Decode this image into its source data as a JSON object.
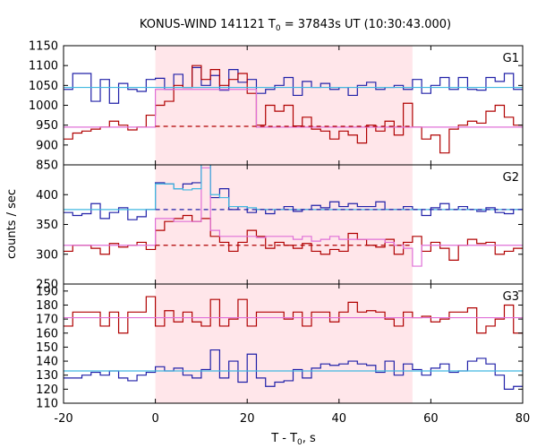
{
  "chart_data": {
    "type": "line",
    "title": "KONUS-WIND 141121 T",
    "title_sub": "0",
    "title_rest": " = 37843s UT (10:30:43.000)",
    "xlabel": "T - T",
    "xlabel_sub": "0",
    "xlabel_rest": ", s",
    "ylabel": "counts / sec",
    "xlim": [
      -20,
      80
    ],
    "xticks": [
      -20,
      0,
      20,
      40,
      60,
      80
    ],
    "shaded_interval": [
      0,
      56
    ],
    "colors": {
      "bg_red": "#b00000",
      "bg_blue": "#2020a8",
      "fg_pink": "#e070d8",
      "fg_cyan": "#40b8e0",
      "shade": "#ffe6ea"
    },
    "bin_edges": [
      -20,
      -18,
      -16,
      -14,
      -12,
      -10,
      -8,
      -6,
      -4,
      -2,
      0,
      2,
      4,
      6,
      8,
      10,
      12,
      14,
      16,
      18,
      20,
      22,
      24,
      26,
      28,
      30,
      32,
      34,
      36,
      38,
      40,
      42,
      44,
      46,
      48,
      50,
      52,
      54,
      56,
      58,
      60,
      62,
      64,
      66,
      68,
      70,
      72,
      74,
      76,
      78,
      80
    ],
    "panels": [
      {
        "label": "G1",
        "ylim": [
          850,
          1150
        ],
        "yticks": [
          850,
          900,
          950,
          1000,
          1050,
          1100,
          1150
        ],
        "ytick_labels": [
          "850",
          "900",
          "950",
          "1000",
          "1050",
          "1100",
          "1150"
        ],
        "series": [
          {
            "color": "blue",
            "values": [
              1040,
              1080,
              1080,
              1010,
              1065,
              1005,
              1055,
              1040,
              1035,
              1065,
              1068,
              1040,
              1078,
              1045,
              1095,
              1050,
              1075,
              1038,
              1090,
              1058,
              1065,
              1030,
              1040,
              1050,
              1070,
              1025,
              1060,
              1045,
              1055,
              1040,
              1045,
              1025,
              1050,
              1058,
              1040,
              1045,
              1050,
              1040,
              1065,
              1030,
              1050,
              1070,
              1040,
              1070,
              1040,
              1038,
              1070,
              1060,
              1080,
              1040
            ]
          },
          {
            "color": "red",
            "values": [
              915,
              930,
              935,
              940,
              945,
              960,
              950,
              938,
              945,
              975,
              1000,
              1010,
              1050,
              1045,
              1100,
              1065,
              1090,
              1050,
              1065,
              1080,
              1030,
              950,
              1000,
              985,
              1000,
              948,
              970,
              940,
              935,
              915,
              935,
              925,
              905,
              950,
              935,
              960,
              925,
              1005,
              945,
              915,
              925,
              880,
              940,
              950,
              960,
              955,
              985,
              1000,
              970,
              950
            ]
          },
          {
            "color": "pink",
            "values": [
              945,
              945,
              945,
              945,
              945,
              945,
              945,
              945,
              945,
              945,
              1040,
              1040,
              1040,
              1040,
              1040,
              1040,
              1040,
              1040,
              1040,
              1040,
              1040,
              945,
              945,
              945,
              945,
              945,
              945,
              945,
              945,
              945,
              945,
              945,
              945,
              945,
              945,
              945,
              945,
              945,
              945,
              945,
              945,
              945,
              945,
              945,
              945,
              945,
              945,
              945,
              945,
              945
            ]
          },
          {
            "color": "cyan",
            "values": [
              1045,
              1045,
              1045,
              1045,
              1045,
              1045,
              1045,
              1045,
              1045,
              1045,
              1045,
              1045,
              1045,
              1045,
              1045,
              1045,
              1045,
              1045,
              1045,
              1045,
              1045,
              1045,
              1045,
              1045,
              1045,
              1045,
              1045,
              1045,
              1045,
              1045,
              1045,
              1045,
              1045,
              1045,
              1045,
              1045,
              1045,
              1045,
              1045,
              1045,
              1045,
              1045,
              1045,
              1045,
              1045,
              1045,
              1045,
              1045,
              1045,
              1045
            ]
          }
        ],
        "dashed": [
          {
            "color": "red",
            "value": 947,
            "from": 0,
            "to": 56
          }
        ]
      },
      {
        "label": "G2",
        "ylim": [
          250,
          450
        ],
        "yticks": [
          250,
          300,
          350,
          400
        ],
        "ytick_labels": [
          "250",
          "300",
          "350",
          "400"
        ],
        "series": [
          {
            "color": "blue",
            "values": [
              370,
              365,
              368,
              385,
              360,
              370,
              378,
              358,
              363,
              375,
              420,
              418,
              410,
              418,
              420,
              470,
              395,
              410,
              375,
              380,
              370,
              375,
              368,
              375,
              380,
              372,
              375,
              382,
              378,
              388,
              380,
              385,
              380,
              380,
              388,
              375,
              375,
              380,
              375,
              365,
              378,
              385,
              375,
              380,
              375,
              372,
              378,
              370,
              368,
              375
            ]
          },
          {
            "color": "red",
            "values": [
              305,
              315,
              315,
              310,
              300,
              318,
              312,
              315,
              320,
              308,
              340,
              355,
              360,
              365,
              355,
              360,
              330,
              320,
              305,
              320,
              340,
              330,
              310,
              320,
              315,
              310,
              318,
              305,
              300,
              308,
              305,
              335,
              325,
              315,
              312,
              325,
              300,
              320,
              330,
              305,
              320,
              310,
              290,
              315,
              325,
              318,
              320,
              300,
              305,
              310
            ]
          },
          {
            "color": "pink",
            "values": [
              315,
              315,
              315,
              315,
              315,
              315,
              315,
              315,
              315,
              315,
              360,
              360,
              355,
              355,
              355,
              445,
              340,
              330,
              330,
              330,
              330,
              328,
              330,
              330,
              330,
              325,
              330,
              322,
              325,
              330,
              325,
              325,
              325,
              325,
              325,
              320,
              315,
              310,
              280,
              315,
              315,
              315,
              315,
              315,
              315,
              315,
              315,
              315,
              315,
              315
            ]
          },
          {
            "color": "cyan",
            "values": [
              375,
              375,
              375,
              375,
              375,
              375,
              375,
              375,
              375,
              375,
              418,
              418,
              410,
              408,
              410,
              465,
              400,
              395,
              380,
              380,
              378,
              375,
              375,
              375,
              375,
              375,
              375,
              375,
              375,
              375,
              375,
              375,
              375,
              375,
              375,
              375,
              375,
              375,
              375,
              375,
              375,
              375,
              375,
              375,
              375,
              375,
              375,
              375,
              375,
              375
            ]
          }
        ],
        "dashed": [
          {
            "color": "blue",
            "value": 375,
            "from": 0,
            "to": 80
          },
          {
            "color": "red",
            "value": 315,
            "from": 0,
            "to": 56
          }
        ]
      },
      {
        "label": "G3",
        "ylim": [
          110,
          195
        ],
        "yticks": [
          110,
          120,
          130,
          140,
          150,
          160,
          170,
          180,
          190
        ],
        "ytick_labels": [
          "110",
          "120",
          "130",
          "140",
          "150",
          "160",
          "170",
          "180",
          "190"
        ],
        "series": [
          {
            "color": "blue",
            "values": [
              128,
              128,
              130,
              132,
              130,
              133,
              128,
              126,
              130,
              132,
              136,
              133,
              135,
              130,
              128,
              134,
              148,
              128,
              140,
              125,
              145,
              128,
              122,
              125,
              126,
              134,
              128,
              135,
              138,
              137,
              138,
              140,
              138,
              137,
              132,
              140,
              130,
              138,
              134,
              130,
              135,
              138,
              132,
              133,
              140,
              142,
              138,
              130,
              120,
              122
            ]
          },
          {
            "color": "red",
            "values": [
              165,
              175,
              175,
              175,
              165,
              175,
              160,
              175,
              175,
              186,
              165,
              176,
              168,
              175,
              168,
              165,
              184,
              165,
              170,
              184,
              165,
              175,
              175,
              175,
              170,
              175,
              165,
              175,
              175,
              168,
              175,
              182,
              175,
              176,
              175,
              170,
              165,
              175,
              171,
              172,
              168,
              170,
              175,
              175,
              178,
              160,
              165,
              170,
              180,
              160
            ]
          },
          {
            "color": "pink",
            "values": [
              171,
              171,
              171,
              171,
              171,
              171,
              171,
              171,
              171,
              171,
              171,
              171,
              171,
              171,
              171,
              171,
              171,
              171,
              171,
              171,
              171,
              171,
              171,
              171,
              171,
              171,
              171,
              171,
              171,
              171,
              171,
              171,
              171,
              171,
              171,
              171,
              171,
              171,
              171,
              171,
              171,
              171,
              171,
              171,
              171,
              171,
              171,
              171,
              171,
              171
            ]
          },
          {
            "color": "cyan",
            "values": [
              133,
              133,
              133,
              133,
              133,
              133,
              133,
              133,
              133,
              133,
              133,
              133,
              133,
              133,
              133,
              133,
              133,
              133,
              133,
              133,
              133,
              133,
              133,
              133,
              133,
              133,
              133,
              133,
              133,
              133,
              133,
              133,
              133,
              133,
              133,
              133,
              133,
              133,
              133,
              133,
              133,
              133,
              133,
              133,
              133,
              133,
              133,
              133,
              133,
              133
            ]
          }
        ],
        "dashed": []
      }
    ]
  }
}
